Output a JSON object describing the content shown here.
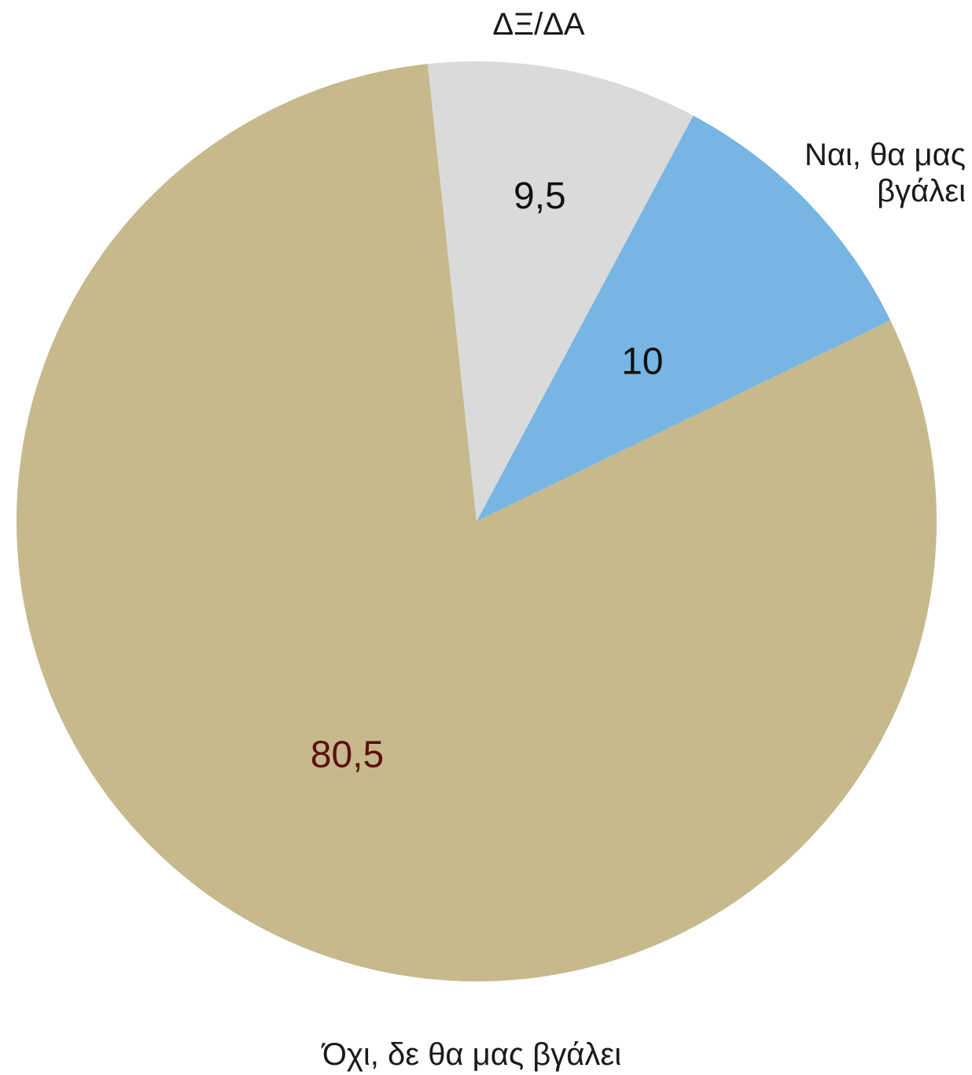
{
  "chart_data": {
    "type": "pie",
    "title": "",
    "slices": [
      {
        "label": "Ναι, θα μας βγάλει",
        "value": 10,
        "value_label": "10",
        "color": "#77b5e2",
        "label_color": "#111111"
      },
      {
        "label": "Όχι, δε θα μας βγάλει",
        "value": 80.5,
        "value_label": "80,5",
        "color": "#c6b98c",
        "label_color": "#5c1010"
      },
      {
        "label": "ΔΞ/ΔΑ",
        "value": 9.5,
        "value_label": "9,5",
        "color": "#dadada",
        "label_color": "#111111"
      }
    ],
    "legend": "none"
  }
}
